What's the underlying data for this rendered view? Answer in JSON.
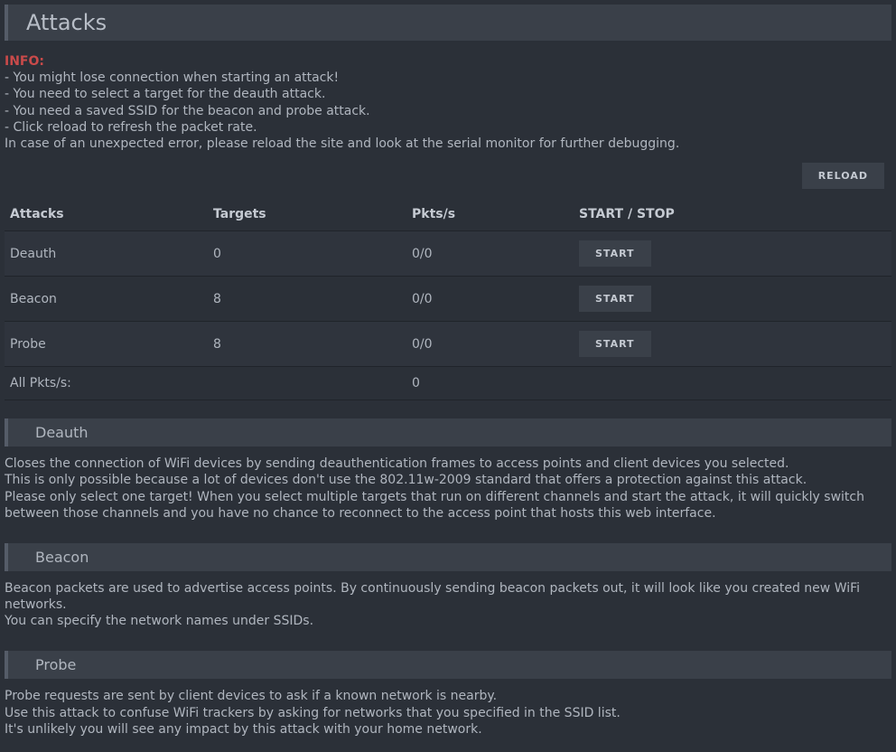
{
  "header": {
    "title": "Attacks"
  },
  "info": {
    "label": "INFO:",
    "lines": [
      "- You might lose connection when starting an attack!",
      "- You need to select a target for the deauth attack.",
      "- You need a saved SSID for the beacon and probe attack.",
      "- Click reload to refresh the packet rate.",
      "In case of an unexpected error, please reload the site and look at the serial monitor for further debugging."
    ]
  },
  "buttons": {
    "reload": "RELOAD",
    "start": "START"
  },
  "table": {
    "headers": {
      "attacks": "Attacks",
      "targets": "Targets",
      "pkts": "Pkts/s",
      "action": "START / STOP"
    },
    "rows": [
      {
        "name": "Deauth",
        "targets": "0",
        "pkts": "0/0"
      },
      {
        "name": "Beacon",
        "targets": "8",
        "pkts": "0/0"
      },
      {
        "name": "Probe",
        "targets": "8",
        "pkts": "0/0"
      }
    ],
    "footer": {
      "label": "All Pkts/s:",
      "value": "0"
    }
  },
  "sections": {
    "deauth": {
      "title": "Deauth",
      "body": "Closes the connection of WiFi devices by sending deauthentication frames to access points and client devices you selected.\nThis is only possible because a lot of devices don't use the 802.11w-2009 standard that offers a protection against this attack.\nPlease only select one target! When you select multiple targets that run on different channels and start the attack, it will quickly switch between those channels and you have no chance to reconnect to the access point that hosts this web interface."
    },
    "beacon": {
      "title": "Beacon",
      "body": "Beacon packets are used to advertise access points. By continuously sending beacon packets out, it will look like you created new WiFi networks.\nYou can specify the network names under SSIDs."
    },
    "probe": {
      "title": "Probe",
      "body": "Probe requests are sent by client devices to ask if a known network is nearby.\nUse this attack to confuse WiFi trackers by asking for networks that you specified in the SSID list.\nIt's unlikely you will see any impact by this attack with your home network."
    }
  },
  "colors": {
    "background": "#2b3038",
    "panel": "#3a4049",
    "accent_border": "#555c68",
    "text": "#b0b6bf",
    "info_label": "#c94a4a",
    "row_alt": "#2f343d",
    "row_border": "#20242a"
  }
}
